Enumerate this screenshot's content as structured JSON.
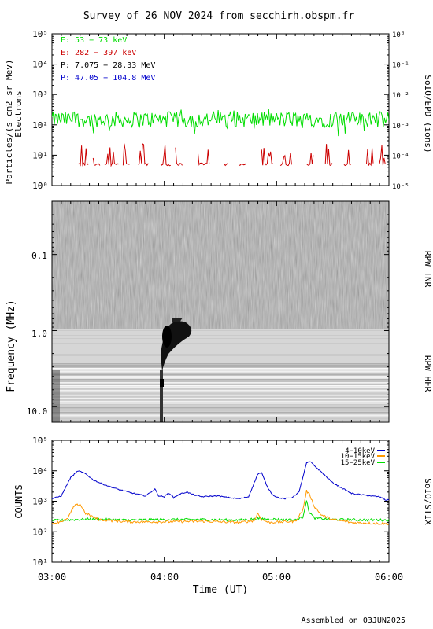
{
  "title": "Survey of 26 NOV 2024 from secchirh.obspm.fr",
  "footer": "Assembled on 03JUN2025",
  "time_axis": {
    "label": "Time (UT)",
    "ticks": [
      "03:00",
      "04:00",
      "05:00",
      "06:00"
    ],
    "range_minutes": [
      0,
      180
    ]
  },
  "colors": {
    "green": "#00dd00",
    "red": "#cc0000",
    "black": "#000000",
    "blue": "#0000cc",
    "orange": "#ff9900"
  },
  "chart_data": [
    {
      "type": "line",
      "panel": "particles",
      "ylabel_left": "Particles/(s cm2 sr Mev)",
      "ylabel_left_sub": "Electrons",
      "ylabel_right": "SoIO/EPD (ions)",
      "yscale": "log",
      "ylim_left": [
        1,
        100000
      ],
      "ylim_right": [
        1e-05,
        1
      ],
      "yticks_left": [
        "10⁰",
        "10¹",
        "10²",
        "10³",
        "10⁴",
        "10⁵"
      ],
      "yticks_right": [
        "10⁻⁵",
        "10⁻⁴",
        "10⁻³",
        "10⁻²",
        "10⁻¹",
        "10⁰"
      ],
      "legend": [
        {
          "label": "E: 53 − 73 keV",
          "color": "#00dd00"
        },
        {
          "label": "E: 282 − 397 keV",
          "color": "#cc0000"
        },
        {
          "label": "P: 7.075 − 28.33 MeV",
          "color": "#000000"
        },
        {
          "label": "P: 47.05 − 104.8 MeV",
          "color": "#0000cc"
        }
      ],
      "series": [
        {
          "name": "E: 53 − 73 keV",
          "color": "#00dd00",
          "typical": 150,
          "range": [
            40,
            300
          ]
        },
        {
          "name": "E: 282 − 397 keV",
          "color": "#cc0000",
          "baseline": 5,
          "spikes_max": 25
        }
      ]
    },
    {
      "type": "heatmap",
      "panel": "radio",
      "ylabel": "Frequency (MHz)",
      "yticks": [
        "0.1",
        "1.0",
        "10.0"
      ],
      "yscale": "log",
      "ylim": [
        0.02,
        16
      ],
      "right_labels": [
        "RPW TNR",
        "RPW HFR"
      ],
      "features": [
        {
          "name": "type III burst",
          "time_start_min": 57,
          "time_end_min": 70,
          "freq_top_mhz": 0.65,
          "freq_bottom_mhz": 10
        }
      ]
    },
    {
      "type": "line",
      "panel": "stix",
      "ylabel": "COUNTS",
      "right_label": "SoIO/STIX",
      "yscale": "log",
      "ylim": [
        10,
        100000
      ],
      "yticks": [
        "10¹",
        "10²",
        "10³",
        "10⁴",
        "10⁵"
      ],
      "legend": [
        {
          "label": "4−10keV",
          "color": "#0000cc"
        },
        {
          "label": "10−15keV",
          "color": "#ff9900"
        },
        {
          "label": "15−25keV",
          "color": "#00dd00"
        }
      ],
      "series": [
        {
          "name": "4−10keV",
          "color": "#0000cc",
          "x": [
            0,
            5,
            10,
            14,
            18,
            22,
            28,
            35,
            42,
            50,
            55,
            57,
            60,
            62,
            63,
            65,
            68,
            72,
            76,
            80,
            88,
            95,
            100,
            105,
            110,
            112,
            115,
            118,
            121,
            124,
            128,
            132,
            134,
            136,
            138,
            140,
            144,
            150,
            160,
            170,
            175,
            178,
            180
          ],
          "y": [
            1200,
            1500,
            6000,
            10000,
            8000,
            5000,
            3500,
            2500,
            1900,
            1500,
            2500,
            1500,
            1400,
            1800,
            1800,
            1300,
            1700,
            2000,
            1600,
            1400,
            1500,
            1300,
            1200,
            1400,
            8000,
            8500,
            3000,
            1600,
            1300,
            1200,
            1300,
            2000,
            6000,
            18000,
            20000,
            15000,
            9000,
            4000,
            1800,
            1500,
            1400,
            1100,
            1100
          ]
        },
        {
          "name": "10−15keV",
          "color": "#ff9900",
          "x": [
            0,
            8,
            12,
            15,
            18,
            25,
            40,
            60,
            80,
            100,
            108,
            110,
            112,
            116,
            130,
            134,
            136,
            138,
            140,
            144,
            150,
            160,
            180
          ],
          "y": [
            180,
            250,
            700,
            800,
            400,
            250,
            210,
            210,
            220,
            200,
            230,
            400,
            250,
            200,
            220,
            500,
            2200,
            1500,
            700,
            350,
            250,
            200,
            180
          ]
        },
        {
          "name": "15−25keV",
          "color": "#00dd00",
          "x": [
            0,
            20,
            40,
            60,
            80,
            100,
            110,
            130,
            134,
            136,
            137,
            140,
            150,
            180
          ],
          "y": [
            230,
            260,
            240,
            250,
            250,
            240,
            270,
            240,
            300,
            1100,
            500,
            280,
            250,
            240
          ]
        }
      ]
    }
  ]
}
